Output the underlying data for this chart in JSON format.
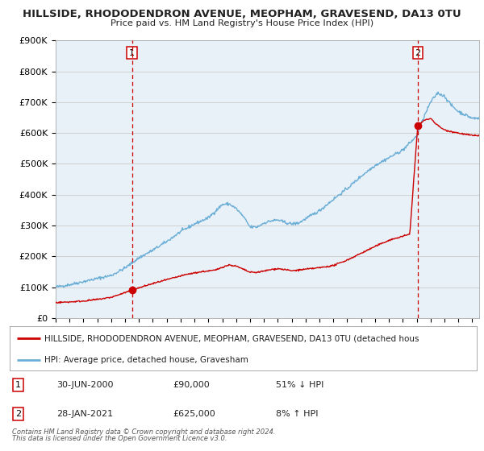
{
  "title": "HILLSIDE, RHODODENDRON AVENUE, MEOPHAM, GRAVESEND, DA13 0TU",
  "subtitle": "Price paid vs. HM Land Registry's House Price Index (HPI)",
  "ylim": [
    0,
    900000
  ],
  "xlim_start": 1995.0,
  "xlim_end": 2025.5,
  "ytick_labels": [
    "£0",
    "£100K",
    "£200K",
    "£300K",
    "£400K",
    "£500K",
    "£600K",
    "£700K",
    "£800K",
    "£900K"
  ],
  "ytick_values": [
    0,
    100000,
    200000,
    300000,
    400000,
    500000,
    600000,
    700000,
    800000,
    900000
  ],
  "hpi_color": "#6baed6",
  "price_color": "#cc0000",
  "vline_color": "#cc0000",
  "plot_bg": "#e8f0f8",
  "sale1_x": 2000.5,
  "sale1_y": 90000,
  "sale2_x": 2021.08,
  "sale2_y": 625000,
  "legend_line1": "HILLSIDE, RHODODENDRON AVENUE, MEOPHAM, GRAVESEND, DA13 0TU (detached hous",
  "legend_line2": "HPI: Average price, detached house, Gravesham",
  "sale1_date": "30-JUN-2000",
  "sale1_price": "£90,000",
  "sale1_note": "51% ↓ HPI",
  "sale2_date": "28-JAN-2021",
  "sale2_price": "£625,000",
  "sale2_note": "8% ↑ HPI",
  "footer1": "Contains HM Land Registry data © Crown copyright and database right 2024.",
  "footer2": "This data is licensed under the Open Government Licence v3.0."
}
